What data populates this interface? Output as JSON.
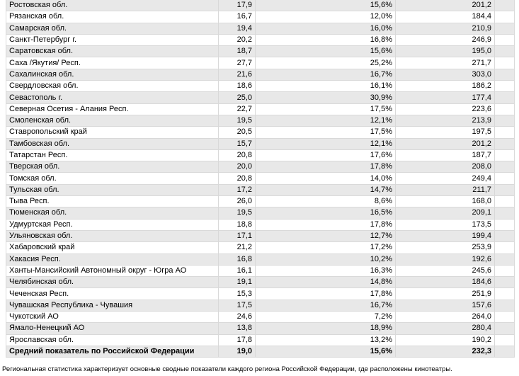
{
  "table": {
    "rows": [
      [
        "Ростовская обл.",
        "17,9",
        "15,6%",
        "201,2"
      ],
      [
        "Рязанская обл.",
        "16,7",
        "12,0%",
        "184,4"
      ],
      [
        "Самарская обл.",
        "19,4",
        "16,0%",
        "210,9"
      ],
      [
        "Санкт-Петербург г.",
        "20,2",
        "16,8%",
        "246,9"
      ],
      [
        "Саратовская обл.",
        "18,7",
        "15,6%",
        "195,0"
      ],
      [
        "Саха /Якутия/ Респ.",
        "27,7",
        "25,2%",
        "271,7"
      ],
      [
        "Сахалинская обл.",
        "21,6",
        "16,7%",
        "303,0"
      ],
      [
        "Свердловская обл.",
        "18,6",
        "16,1%",
        "186,2"
      ],
      [
        "Севастополь г.",
        "25,0",
        "30,9%",
        "177,4"
      ],
      [
        "Северная Осетия - Алания Респ.",
        "22,7",
        "17,5%",
        "223,6"
      ],
      [
        "Смоленская обл.",
        "19,5",
        "12,1%",
        "213,9"
      ],
      [
        "Ставропольский край",
        "20,5",
        "17,5%",
        "197,5"
      ],
      [
        "Тамбовская обл.",
        "15,7",
        "12,1%",
        "201,2"
      ],
      [
        "Татарстан Респ.",
        "20,8",
        "17,6%",
        "187,7"
      ],
      [
        "Тверская обл.",
        "20,0",
        "17,8%",
        "208,0"
      ],
      [
        "Томская обл.",
        "20,8",
        "14,0%",
        "249,4"
      ],
      [
        "Тульская обл.",
        "17,2",
        "14,7%",
        "211,7"
      ],
      [
        "Тыва Респ.",
        "26,0",
        "8,6%",
        "168,0"
      ],
      [
        "Тюменская обл.",
        "19,5",
        "16,5%",
        "209,1"
      ],
      [
        "Удмуртская Респ.",
        "18,8",
        "17,8%",
        "173,5"
      ],
      [
        "Ульяновская обл.",
        "17,1",
        "12,7%",
        "199,4"
      ],
      [
        "Хабаровский край",
        "21,2",
        "17,2%",
        "253,9"
      ],
      [
        "Хакасия Респ.",
        "16,8",
        "10,2%",
        "192,6"
      ],
      [
        "Ханты-Мансийский Автономный округ - Югра АО",
        "16,1",
        "16,3%",
        "245,6"
      ],
      [
        "Челябинская обл.",
        "19,1",
        "14,8%",
        "184,6"
      ],
      [
        "Чеченская Респ.",
        "15,3",
        "17,8%",
        "251,9"
      ],
      [
        "Чувашская Республика - Чувашия",
        "17,5",
        "16,7%",
        "157,6"
      ],
      [
        "Чукотский АО",
        "24,6",
        "7,2%",
        "264,0"
      ],
      [
        "Ямало-Ненецкий АО",
        "13,8",
        "18,9%",
        "280,4"
      ],
      [
        "Ярославская обл.",
        "17,8",
        "13,2%",
        "190,2"
      ],
      [
        "Средний показатель по Российской Федерации",
        "19,0",
        "15,6%",
        "232,3"
      ]
    ]
  },
  "footer": {
    "note": "Региональная статистика характеризует основные сводные показатели каждого региона Российской Федерации, где расположены кинотеатры."
  }
}
